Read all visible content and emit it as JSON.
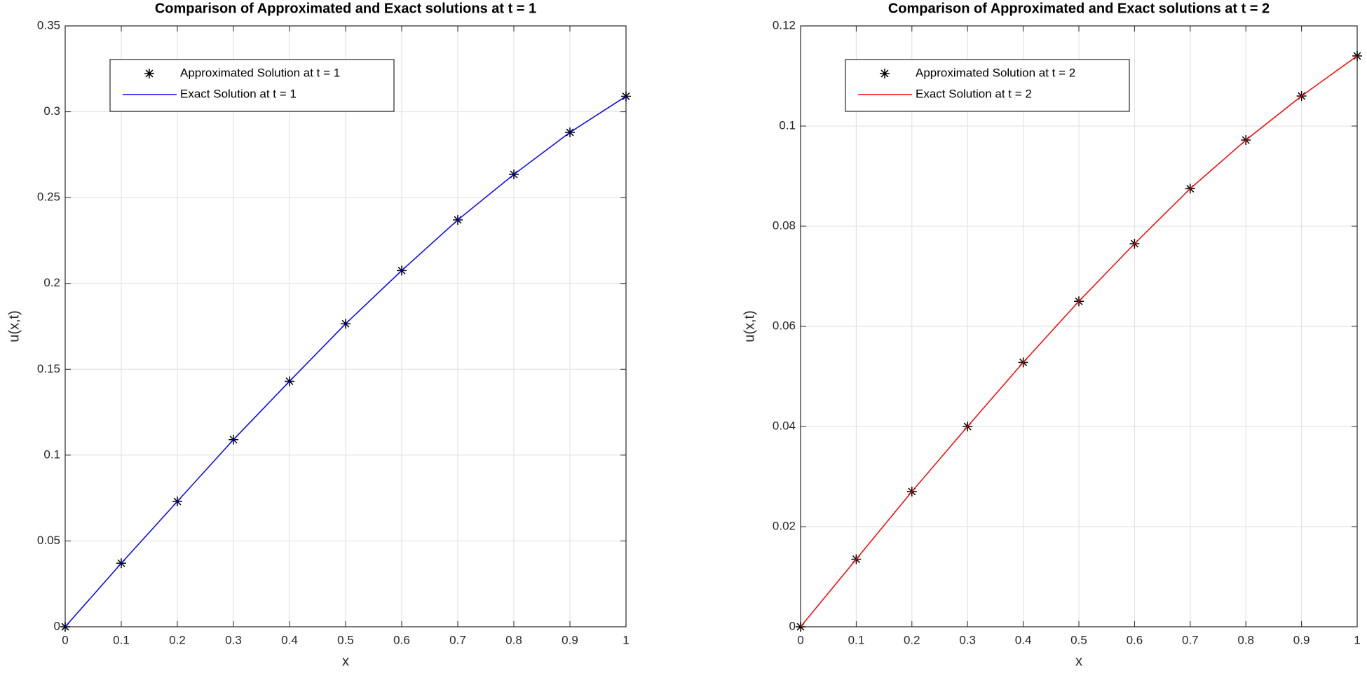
{
  "chart_data": [
    {
      "type": "line",
      "title": "Comparison of Approximated and Exact solutions at t = 1",
      "x_label": "x",
      "y_label": "u(x,t)",
      "x": [
        0,
        0.1,
        0.2,
        0.3,
        0.4,
        0.5,
        0.6,
        0.7,
        0.8,
        0.9,
        1
      ],
      "series": [
        {
          "name": "Approximated Solution at t = 1",
          "color": "#000000",
          "style": "markers",
          "values": [
            0,
            0.037,
            0.073,
            0.109,
            0.143,
            0.1765,
            0.2075,
            0.237,
            0.2635,
            0.288,
            0.309
          ]
        },
        {
          "name": "Exact Solution at t = 1",
          "color": "#0000ff",
          "style": "line",
          "values": [
            0,
            0.037,
            0.073,
            0.109,
            0.143,
            0.1765,
            0.2075,
            0.237,
            0.2635,
            0.288,
            0.309
          ]
        }
      ],
      "xlim": [
        0,
        1
      ],
      "xticks": [
        0,
        0.1,
        0.2,
        0.3,
        0.4,
        0.5,
        0.6,
        0.7,
        0.8,
        0.9,
        1
      ],
      "ylim": [
        0,
        0.35
      ],
      "yticks": [
        0,
        0.05,
        0.1,
        0.15,
        0.2,
        0.25,
        0.3,
        0.35
      ],
      "grid": true,
      "legend": "upper left"
    },
    {
      "type": "line",
      "title": "Comparison of Approximated and Exact solutions at t = 2",
      "x_label": "x",
      "y_label": "u(x,t)",
      "x": [
        0,
        0.1,
        0.2,
        0.3,
        0.4,
        0.5,
        0.6,
        0.7,
        0.8,
        0.9,
        1
      ],
      "series": [
        {
          "name": "Approximated Solution at t = 2",
          "color": "#000000",
          "style": "markers",
          "values": [
            0,
            0.0135,
            0.027,
            0.04,
            0.0528,
            0.065,
            0.0765,
            0.0875,
            0.0972,
            0.106,
            0.114
          ]
        },
        {
          "name": "Exact Solution at t = 2",
          "color": "#ff0000",
          "style": "line",
          "values": [
            0,
            0.0135,
            0.027,
            0.04,
            0.0528,
            0.065,
            0.0765,
            0.0875,
            0.0972,
            0.106,
            0.114
          ]
        }
      ],
      "xlim": [
        0,
        1
      ],
      "xticks": [
        0,
        0.1,
        0.2,
        0.3,
        0.4,
        0.5,
        0.6,
        0.7,
        0.8,
        0.9,
        1
      ],
      "ylim": [
        0,
        0.12
      ],
      "yticks": [
        0,
        0.02,
        0.04,
        0.06,
        0.08,
        0.1,
        0.12
      ],
      "grid": true,
      "legend": "upper left"
    }
  ]
}
